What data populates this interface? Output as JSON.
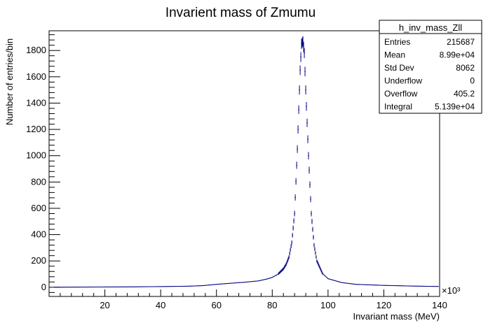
{
  "chart_data": {
    "type": "histogram",
    "title": "Invarient mass of Zmumu",
    "xlabel": "Invariant mass (MeV)",
    "ylabel": "Number of entries/bin",
    "x_multiplier": "×10³",
    "xlim": [
      0,
      140
    ],
    "ylim": [
      -70,
      1950
    ],
    "x_ticks": [
      20,
      40,
      60,
      80,
      100,
      120,
      140
    ],
    "y_ticks": [
      0,
      200,
      400,
      600,
      800,
      1000,
      1200,
      1400,
      1600,
      1800
    ],
    "grid": false,
    "line_color": "#000080",
    "series": [
      {
        "x": [
          2,
          10,
          20,
          30,
          40,
          50,
          55,
          60,
          65,
          70,
          75,
          78,
          80,
          82,
          84,
          85,
          86,
          87,
          88,
          89,
          90,
          90.5,
          91,
          91.5,
          92,
          93,
          94,
          95,
          96,
          98,
          100,
          105,
          110,
          120,
          130,
          139
        ],
        "y": [
          0,
          1,
          2,
          3,
          5,
          8,
          12,
          22,
          30,
          38,
          48,
          62,
          75,
          98,
          140,
          175,
          230,
          340,
          560,
          1050,
          1650,
          1850,
          1870,
          1780,
          1500,
          1000,
          560,
          320,
          200,
          105,
          65,
          35,
          22,
          14,
          9,
          6
        ]
      }
    ],
    "stats_box": {
      "name": "h_inv_mass_Zll",
      "rows": [
        {
          "label": "Entries",
          "value": "215687"
        },
        {
          "label": "Mean",
          "value": "8.99e+04"
        },
        {
          "label": "Std Dev",
          "value": "8062"
        },
        {
          "label": "Underflow",
          "value": "0"
        },
        {
          "label": "Overflow",
          "value": "405.2"
        },
        {
          "label": "Integral",
          "value": "5.139e+04"
        }
      ]
    }
  }
}
